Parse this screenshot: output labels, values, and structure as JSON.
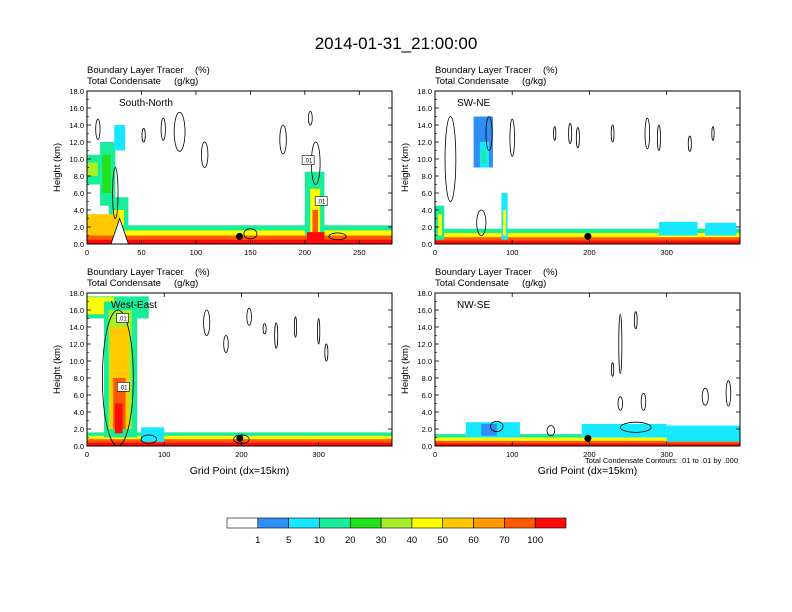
{
  "figure": {
    "title": "2014-01-31_21:00:00",
    "x_axis_label": "Grid Point (dx=15km)",
    "footnote": "Total Condensate Contours: .01 to .01 by .000"
  },
  "colorbar": {
    "colors": [
      "#ffffff",
      "#2d8ef6",
      "#16e8ff",
      "#19ed9a",
      "#22e21e",
      "#a6ef28",
      "#fffe00",
      "#ffcb00",
      "#ff9900",
      "#ff5a00",
      "#ff0a0a"
    ],
    "labels": [
      "1",
      "5",
      "10",
      "20",
      "30",
      "40",
      "50",
      "60",
      "70",
      "100"
    ]
  },
  "chart_data": [
    {
      "type": "heatmap",
      "name": "South-North",
      "label": "South-North",
      "subtitle_left": [
        "Boundary Layer Tracer",
        "Total Condensate"
      ],
      "subtitle_units": [
        "(%)",
        "(g/kg)"
      ],
      "ylabel": "Height (km)",
      "xlabel": "",
      "xlim": [
        0,
        280
      ],
      "ylim": [
        0,
        18
      ],
      "xticks": [
        "0",
        "50",
        "100",
        "150",
        "200",
        "250"
      ],
      "yticks": [
        "0.0",
        "2.0",
        "4.0",
        "6.0",
        "8.0",
        "10.0",
        "12.0",
        "14.0",
        "16.0",
        "18.0"
      ],
      "marker_x": 140,
      "contour_labels": [
        {
          "text": ".01",
          "x": 203,
          "y": 9.8
        },
        {
          "text": ".01",
          "x": 215,
          "y": 5.0
        }
      ]
    },
    {
      "type": "heatmap",
      "name": "SW-NE",
      "label": "SW-NE",
      "subtitle_left": [
        "Boundary Layer Tracer",
        "Total Condensate"
      ],
      "subtitle_units": [
        "(%)",
        "(g/kg)"
      ],
      "ylabel": "Height (km)",
      "xlabel": "",
      "xlim": [
        0,
        395
      ],
      "ylim": [
        0,
        18
      ],
      "xticks": [
        "0",
        "100",
        "200",
        "300"
      ],
      "yticks": [
        "0.0",
        "2.0",
        "4.0",
        "6.0",
        "8.0",
        "10.0",
        "12.0",
        "14.0",
        "16.0",
        "18.0"
      ],
      "marker_x": 198,
      "contour_labels": []
    },
    {
      "type": "heatmap",
      "name": "West-East",
      "label": "West-East",
      "subtitle_left": [
        "Boundary Layer Tracer",
        "Total Condensate"
      ],
      "subtitle_units": [
        "(%)",
        "(g/kg)"
      ],
      "ylabel": "Height (km)",
      "xlabel": "Grid Point (dx=15km)",
      "xlim": [
        0,
        395
      ],
      "ylim": [
        0,
        18
      ],
      "xticks": [
        "0",
        "100",
        "200",
        "300"
      ],
      "yticks": [
        "0.0",
        "2.0",
        "4.0",
        "6.0",
        "8.0",
        "10.0",
        "12.0",
        "14.0",
        "16.0",
        "18.0"
      ],
      "marker_x": 198,
      "contour_labels": [
        {
          "text": ".01",
          "x": 46,
          "y": 15.0
        },
        {
          "text": ".01",
          "x": 47,
          "y": 6.9
        }
      ]
    },
    {
      "type": "heatmap",
      "name": "NW-SE",
      "label": "NW-SE",
      "subtitle_left": [
        "Boundary Layer Tracer",
        "Total Condensate"
      ],
      "subtitle_units": [
        "(%)",
        "(g/kg)"
      ],
      "ylabel": "Height (km)",
      "xlabel": "Grid Point (dx=15km)",
      "xlim": [
        0,
        395
      ],
      "ylim": [
        0,
        18
      ],
      "xticks": [
        "0",
        "100",
        "200",
        "300"
      ],
      "yticks": [
        "0.0",
        "2.0",
        "4.0",
        "6.0",
        "8.0",
        "10.0",
        "12.0",
        "14.0",
        "16.0",
        "18.0"
      ],
      "marker_x": 198,
      "contour_labels": []
    }
  ]
}
